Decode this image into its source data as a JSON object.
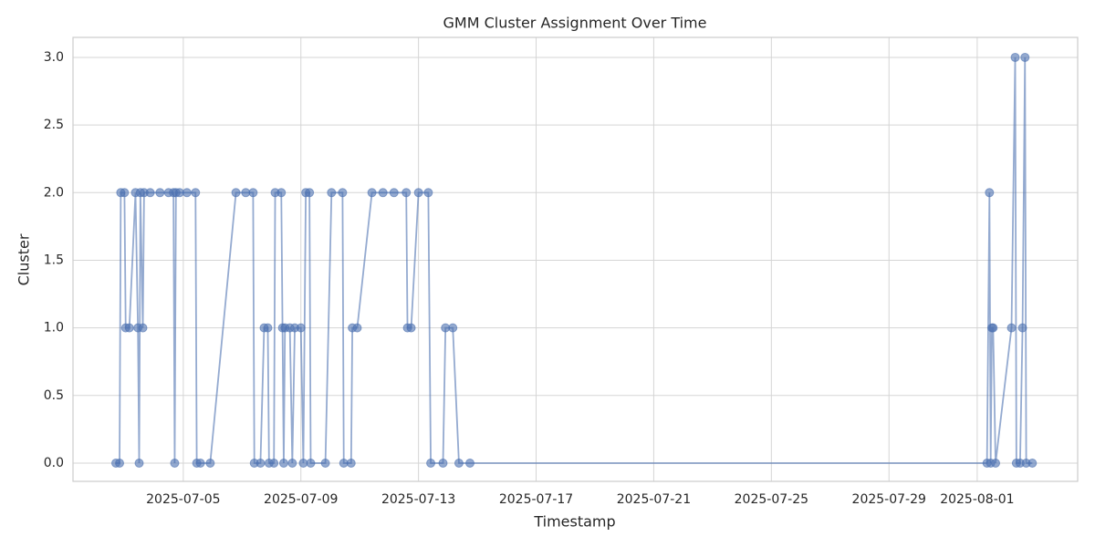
{
  "chart_data": {
    "type": "line",
    "title": "GMM Cluster Assignment Over Time",
    "x_label": "Timestamp",
    "y_label": "Cluster",
    "grid": true,
    "color": "#4c72b0",
    "x": [
      "2025-07-02 17:00",
      "2025-07-02 20:00",
      "2025-07-02 21:00",
      "2025-07-03 00:00",
      "2025-07-03 01:00",
      "2025-07-03 04:00",
      "2025-07-03 09:00",
      "2025-07-03 11:00",
      "2025-07-03 12:00",
      "2025-07-03 13:00",
      "2025-07-03 15:00",
      "2025-07-03 16:00",
      "2025-07-03 21:00",
      "2025-07-04 05:00",
      "2025-07-04 12:00",
      "2025-07-04 16:00",
      "2025-07-04 17:00",
      "2025-07-04 18:00",
      "2025-07-04 21:00",
      "2025-07-05 03:00",
      "2025-07-05 10:00",
      "2025-07-05 11:00",
      "2025-07-05 14:00",
      "2025-07-05 22:00",
      "2025-07-06 19:00",
      "2025-07-07 03:00",
      "2025-07-07 09:00",
      "2025-07-07 10:00",
      "2025-07-07 15:00",
      "2025-07-07 18:00",
      "2025-07-07 21:00",
      "2025-07-07 22:00",
      "2025-07-08 02:00",
      "2025-07-08 03:00",
      "2025-07-08 08:00",
      "2025-07-08 09:00",
      "2025-07-08 10:00",
      "2025-07-08 11:00",
      "2025-07-08 15:00",
      "2025-07-08 17:00",
      "2025-07-08 19:00",
      "2025-07-09 00:00",
      "2025-07-09 02:00",
      "2025-07-09 04:00",
      "2025-07-09 07:00",
      "2025-07-09 08:00",
      "2025-07-09 20:00",
      "2025-07-10 01:00",
      "2025-07-10 10:00",
      "2025-07-10 11:00",
      "2025-07-10 17:00",
      "2025-07-10 18:00",
      "2025-07-10 22:00",
      "2025-07-11 10:00",
      "2025-07-11 19:00",
      "2025-07-12 04:00",
      "2025-07-12 14:00",
      "2025-07-12 15:00",
      "2025-07-12 18:00",
      "2025-07-13 00:00",
      "2025-07-13 08:00",
      "2025-07-13 10:00",
      "2025-07-13 20:00",
      "2025-07-13 22:00",
      "2025-07-14 04:00",
      "2025-07-14 09:00",
      "2025-07-14 18:00",
      "2025-08-01 08:00",
      "2025-08-01 10:00",
      "2025-08-01 11:00",
      "2025-08-01 12:00",
      "2025-08-01 13:00",
      "2025-08-01 15:00",
      "2025-08-02 04:00",
      "2025-08-02 07:00",
      "2025-08-02 08:00",
      "2025-08-02 11:00",
      "2025-08-02 13:00",
      "2025-08-02 15:00",
      "2025-08-02 16:00",
      "2025-08-02 21:00"
    ],
    "values": [
      0,
      0,
      2,
      2,
      1,
      1,
      2,
      1,
      0,
      2,
      1,
      2,
      2,
      2,
      2,
      2,
      0,
      2,
      2,
      2,
      2,
      0,
      0,
      0,
      2,
      2,
      2,
      0,
      0,
      1,
      1,
      0,
      0,
      2,
      2,
      1,
      0,
      1,
      1,
      0,
      1,
      1,
      0,
      2,
      2,
      0,
      0,
      2,
      2,
      0,
      0,
      1,
      1,
      2,
      2,
      2,
      2,
      1,
      1,
      2,
      2,
      0,
      0,
      1,
      1,
      0,
      0,
      0,
      2,
      0,
      1,
      1,
      0,
      1,
      3,
      0,
      0,
      1,
      3,
      0,
      0
    ],
    "xlim": [
      "2025-07-01 06:00",
      "2025-08-04 10:00"
    ],
    "xticks": [
      "2025-07-05",
      "2025-07-09",
      "2025-07-13",
      "2025-07-17",
      "2025-07-21",
      "2025-07-25",
      "2025-07-29",
      "2025-08-01"
    ],
    "ylim": [
      -0.135,
      3.148
    ],
    "yticks": [
      {
        "value": 0,
        "label": "0.0"
      },
      {
        "value": 0.5,
        "label": "0.5"
      },
      {
        "value": 1,
        "label": "1.0"
      },
      {
        "value": 1.5,
        "label": "1.5"
      },
      {
        "value": 2,
        "label": "2.0"
      },
      {
        "value": 2.5,
        "label": "2.5"
      },
      {
        "value": 3,
        "label": "3.0"
      }
    ]
  }
}
